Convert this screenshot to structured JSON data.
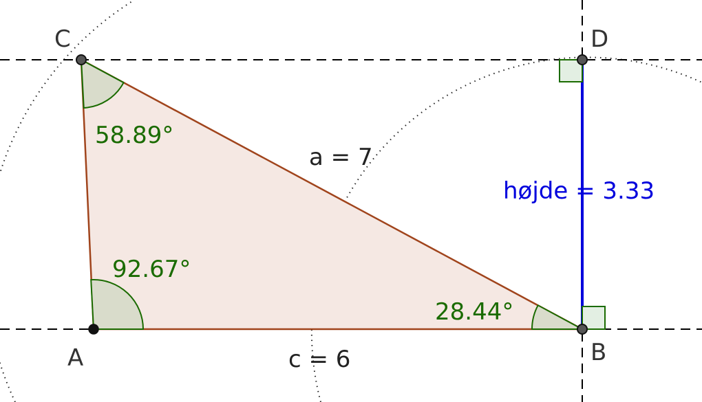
{
  "points": {
    "A": "A",
    "B": "B",
    "C": "C",
    "D": "D"
  },
  "angles": {
    "A": "92.67°",
    "B": "28.44°",
    "C": "58.89°"
  },
  "sides": {
    "a": "a = 7",
    "c": "c = 6"
  },
  "height": {
    "label": "højde = 3.33"
  },
  "colors": {
    "triangle_fill": "#f5e8e3",
    "triangle_stroke": "#a0441c",
    "angle_text": "#1a6b00",
    "angle_fill": "#d9dccb",
    "height_line": "#0000dd",
    "height_text": "#0000dd",
    "right_angle_fill": "#e3efe3",
    "right_angle_stroke": "#1a6b00",
    "point_fill": "#555555",
    "guide_line": "#000000"
  }
}
